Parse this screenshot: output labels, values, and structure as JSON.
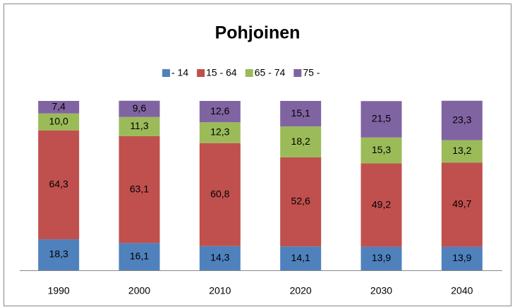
{
  "chart_data": {
    "type": "stacked_bar",
    "title": "Pohjoinen",
    "categories": [
      "1990",
      "2000",
      "2010",
      "2020",
      "2030",
      "2040"
    ],
    "series": [
      {
        "name": "- 14",
        "color": "#4f81bd",
        "values": [
          18.3,
          16.1,
          14.3,
          14.1,
          13.9,
          13.9
        ],
        "value_labels": [
          "18,3",
          "16,1",
          "14,3",
          "14,1",
          "13,9",
          "13,9"
        ]
      },
      {
        "name": "15 - 64",
        "color": "#c0504d",
        "values": [
          64.3,
          63.1,
          60.8,
          52.6,
          49.2,
          49.7
        ],
        "value_labels": [
          "64,3",
          "63,1",
          "60,8",
          "52,6",
          "49,2",
          "49,7"
        ]
      },
      {
        "name": "65 - 74",
        "color": "#9bbb59",
        "values": [
          10.0,
          11.3,
          12.3,
          18.2,
          15.3,
          13.2
        ],
        "value_labels": [
          "10,0",
          "11,3",
          "12,3",
          "18,2",
          "15,3",
          "13,2"
        ]
      },
      {
        "name": "75 -",
        "color": "#8064a2",
        "values": [
          7.4,
          9.6,
          12.6,
          15.1,
          21.5,
          23.3
        ],
        "value_labels": [
          "7,4",
          "9,6",
          "12,6",
          "15,1",
          "21,5",
          "23,3"
        ]
      }
    ],
    "ylim": [
      0,
      100
    ],
    "legend": "top"
  }
}
